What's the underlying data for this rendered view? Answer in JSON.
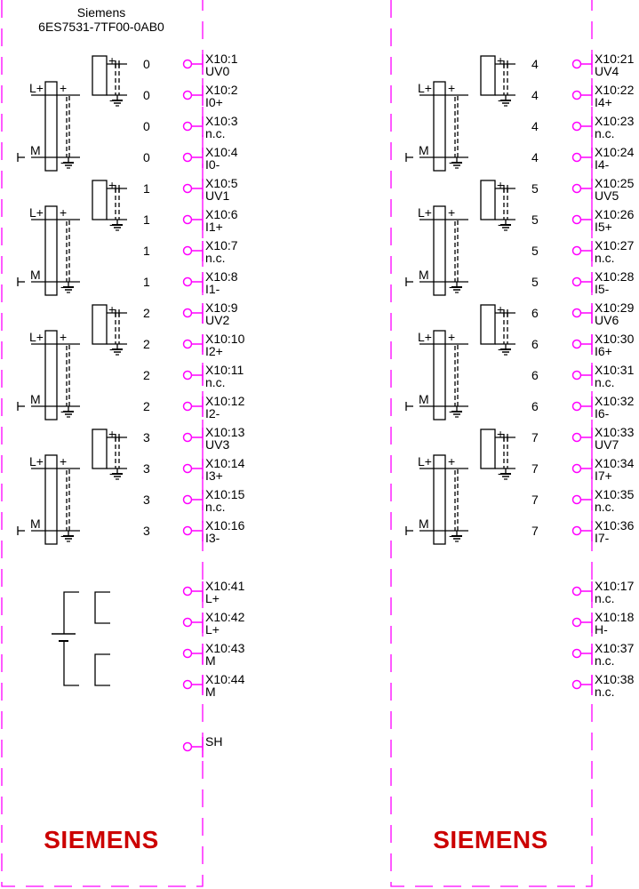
{
  "header": {
    "manufacturer": "Siemens",
    "part_number": "6ES7531-7TF00-0AB0"
  },
  "logo": "SIEMENS",
  "colors": {
    "frame": "#ff00ff",
    "terminal": "#ff00ff",
    "logo": "#cc0000",
    "lines": "#000000"
  },
  "symbol_labels": {
    "lplus": "L+",
    "m": "M",
    "plus": "+",
    "minus": "-"
  },
  "left": {
    "channels": [
      {
        "number": "0",
        "terminals": [
          [
            "X10:1",
            "UV0"
          ],
          [
            "X10:2",
            "I0+"
          ],
          [
            "X10:3",
            "n.c."
          ],
          [
            "X10:4",
            "I0-"
          ]
        ]
      },
      {
        "number": "1",
        "terminals": [
          [
            "X10:5",
            "UV1"
          ],
          [
            "X10:6",
            "I1+"
          ],
          [
            "X10:7",
            "n.c."
          ],
          [
            "X10:8",
            "I1-"
          ]
        ]
      },
      {
        "number": "2",
        "terminals": [
          [
            "X10:9",
            "UV2"
          ],
          [
            "X10:10",
            "I2+"
          ],
          [
            "X10:11",
            "n.c."
          ],
          [
            "X10:12",
            "I2-"
          ]
        ]
      },
      {
        "number": "3",
        "terminals": [
          [
            "X10:13",
            "UV3"
          ],
          [
            "X10:14",
            "I3+"
          ],
          [
            "X10:15",
            "n.c."
          ],
          [
            "X10:16",
            "I3-"
          ]
        ]
      }
    ],
    "power_terminals": [
      [
        "X10:41",
        "L+"
      ],
      [
        "X10:42",
        "L+"
      ],
      [
        "X10:43",
        "M"
      ],
      [
        "X10:44",
        "M"
      ]
    ],
    "shield_terminal": "SH"
  },
  "right": {
    "channels": [
      {
        "number": "4",
        "terminals": [
          [
            "X10:21",
            "UV4"
          ],
          [
            "X10:22",
            "I4+"
          ],
          [
            "X10:23",
            "n.c."
          ],
          [
            "X10:24",
            "I4-"
          ]
        ]
      },
      {
        "number": "5",
        "terminals": [
          [
            "X10:25",
            "UV5"
          ],
          [
            "X10:26",
            "I5+"
          ],
          [
            "X10:27",
            "n.c."
          ],
          [
            "X10:28",
            "I5-"
          ]
        ]
      },
      {
        "number": "6",
        "terminals": [
          [
            "X10:29",
            "UV6"
          ],
          [
            "X10:30",
            "I6+"
          ],
          [
            "X10:31",
            "n.c."
          ],
          [
            "X10:32",
            "I6-"
          ]
        ]
      },
      {
        "number": "7",
        "terminals": [
          [
            "X10:33",
            "UV7"
          ],
          [
            "X10:34",
            "I7+"
          ],
          [
            "X10:35",
            "n.c."
          ],
          [
            "X10:36",
            "I7-"
          ]
        ]
      }
    ],
    "extra_terminals": [
      [
        "X10:17",
        "n.c."
      ],
      [
        "X10:18",
        "H-"
      ],
      [
        "X10:37",
        "n.c."
      ],
      [
        "X10:38",
        "n.c."
      ]
    ]
  }
}
